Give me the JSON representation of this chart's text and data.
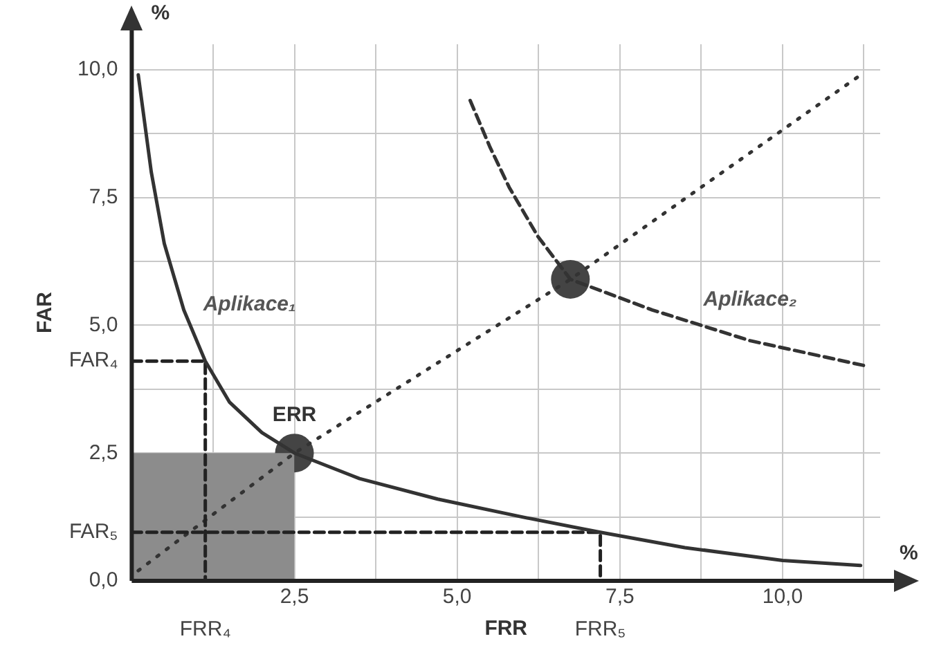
{
  "chart_data": {
    "type": "line",
    "xlabel": "FRR",
    "ylabel": "FAR",
    "grid": true,
    "legend": false,
    "marker": "none",
    "annotations": [
      "%",
      "%",
      {
        "text": "ERR",
        "x": 2.5,
        "y": 2.5
      },
      {
        "text": "FRR₄",
        "x": 1.13,
        "y": 0
      },
      {
        "text": "FRR₅",
        "x": 7.2,
        "y": 0
      },
      {
        "text": "FAR₄",
        "x": 0,
        "y": 4.3
      },
      {
        "text": "FAR₅",
        "x": 0,
        "y": 0.95
      }
    ],
    "xlim": [
      0,
      11.5
    ],
    "ylim": [
      0,
      10.5
    ],
    "xticks": [
      {
        "value": 1.25,
        "label": null
      },
      {
        "value": 2.5,
        "label": "2,5"
      },
      {
        "value": 3.75,
        "label": null
      },
      {
        "value": 5,
        "label": "5,0"
      },
      {
        "value": 6.25,
        "label": null
      },
      {
        "value": 7.5,
        "label": "7,5"
      },
      {
        "value": 8.75,
        "label": null
      },
      {
        "value": 10,
        "label": "10,0"
      },
      {
        "value": 11.25,
        "label": null
      }
    ],
    "yticks": [
      {
        "value": 0,
        "label": "0,0"
      },
      {
        "value": 1.25,
        "label": null
      },
      {
        "value": 2.5,
        "label": "2,5"
      },
      {
        "value": 3.75,
        "label": null
      },
      {
        "value": 5,
        "label": "5,0"
      },
      {
        "value": 6.25,
        "label": null
      },
      {
        "value": 7.5,
        "label": "7,5"
      },
      {
        "value": 8.75,
        "label": null
      },
      {
        "value": 10,
        "label": "10,0"
      }
    ],
    "series": [
      {
        "type": "area",
        "color": "#8c8c8c",
        "x": [
          0,
          2.5
        ],
        "values": [
          2.5,
          2.5
        ]
      },
      {
        "type": "line",
        "color": "#333333",
        "line_style": "dotted",
        "x": [
          0.1,
          2.5,
          6.74,
          11.2
        ],
        "values": [
          0.2,
          2.5,
          5.9,
          9.9
        ]
      },
      {
        "type": "line",
        "color": "#222222",
        "line_style": "dashed",
        "x": [
          0,
          1.13,
          1.13
        ],
        "values": [
          4.3,
          4.3,
          0
        ]
      },
      {
        "type": "line",
        "color": "#222222",
        "line_style": "dashed",
        "x": [
          0,
          7.2,
          7.2
        ],
        "values": [
          0.95,
          0.95,
          0
        ]
      },
      {
        "type": "line",
        "name": "Aplikace₁",
        "color": "#333333",
        "line_style": "solid",
        "x": [
          0.1,
          0.3,
          0.5,
          0.8,
          1.13,
          1.5,
          2.0,
          2.5,
          3.5,
          4.7,
          6,
          7.2,
          8.5,
          10,
          11.2
        ],
        "values": [
          9.9,
          8.0,
          6.6,
          5.3,
          4.3,
          3.5,
          2.9,
          2.5,
          2.0,
          1.6,
          1.25,
          0.95,
          0.65,
          0.4,
          0.3
        ]
      },
      {
        "type": "line",
        "name": "Aplikace₂",
        "color": "#333333",
        "line_style": "dashed",
        "x": [
          5.2,
          5.5,
          5.8,
          6.24,
          6.74,
          8.0,
          9.5,
          11.3
        ],
        "values": [
          9.4,
          8.5,
          7.7,
          6.74,
          5.9,
          5.3,
          4.7,
          4.2
        ]
      },
      {
        "type": "scatter",
        "color": "#444444",
        "marker": "circle",
        "x": [
          2.5,
          6.74
        ],
        "values": [
          2.5,
          5.9
        ]
      }
    ]
  }
}
